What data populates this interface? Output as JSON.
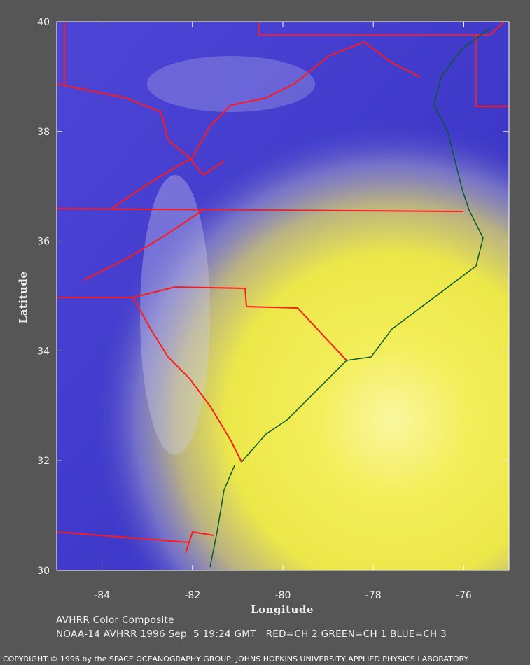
{
  "chart_data": {
    "type": "map",
    "xlabel": "Longitude",
    "ylabel": "Latitude",
    "xlim": [
      -85,
      -75
    ],
    "ylim": [
      30,
      40
    ],
    "xticks": [
      -84,
      -82,
      -80,
      -78,
      -76
    ],
    "yticks": [
      30,
      32,
      34,
      36,
      38,
      40
    ]
  },
  "caption": {
    "line1": "AVHRR Color Composite",
    "line2": "NOAA-14 AVHRR 1996 Sep  5 19:24 GMT   RED=CH 2 GREEN=CH 1 BLUE=CH 3"
  },
  "copyright": "COPYRIGHT © 1996 by the SPACE OCEANOGRAPHY GROUP, JOHNS HOPKINS UNIVERSITY APPLIED PHYSICS LABORATORY"
}
